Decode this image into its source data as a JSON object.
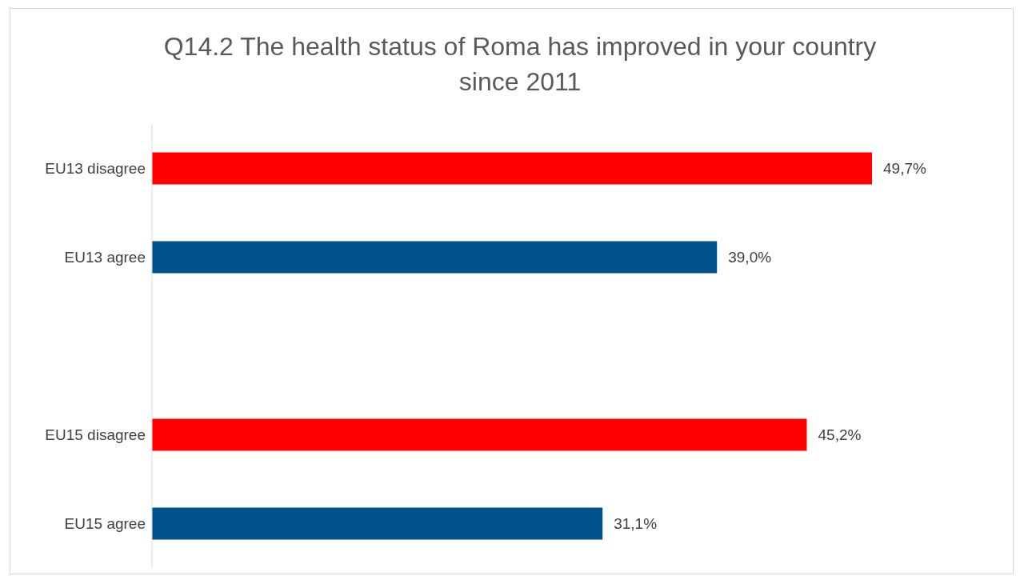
{
  "chart_data": {
    "type": "bar",
    "orientation": "horizontal",
    "title": "Q14.2 The health status of Roma has improved in your country since 2011",
    "categories": [
      "EU13 disagree",
      "EU13 agree",
      null,
      "EU15 disagree",
      "EU15 agree"
    ],
    "values": [
      49.7,
      39.0,
      null,
      45.2,
      31.1
    ],
    "colors": [
      "#ff0000",
      "#00538a",
      null,
      "#ff0000",
      "#00538a"
    ],
    "value_labels": [
      "49,7%",
      "39,0%",
      null,
      "45,2%",
      "31,1%"
    ],
    "grid": false,
    "legend": false
  }
}
